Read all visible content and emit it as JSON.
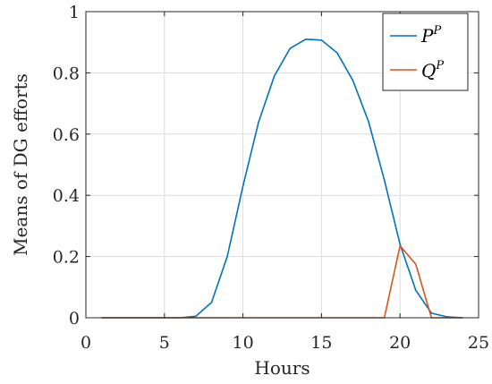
{
  "chart_data": {
    "type": "line",
    "title": "",
    "xlabel": "Hours",
    "ylabel": "Means of DG efforts",
    "xlim": [
      0,
      25
    ],
    "ylim": [
      0,
      1
    ],
    "xticks": [
      0,
      5,
      10,
      15,
      20,
      25
    ],
    "xtick_labels": [
      "0",
      "5",
      "10",
      "15",
      "20",
      "25"
    ],
    "yticks": [
      0,
      0.2,
      0.4,
      0.6,
      0.8,
      1
    ],
    "ytick_labels": [
      "0",
      "0.2",
      "0.4",
      "0.6",
      "0.8",
      "1"
    ],
    "grid": true,
    "legend_position": "top-right",
    "series": [
      {
        "name": "P",
        "name_superscript": "P",
        "color": "#0072bd",
        "x": [
          1,
          2,
          3,
          4,
          5,
          6,
          7,
          8,
          9,
          10,
          11,
          12,
          13,
          14,
          15,
          16,
          17,
          18,
          19,
          20,
          21,
          22,
          23,
          24
        ],
        "y": [
          0,
          0,
          0,
          0,
          0,
          0,
          0.005,
          0.05,
          0.2,
          0.43,
          0.64,
          0.79,
          0.88,
          0.91,
          0.907,
          0.865,
          0.775,
          0.64,
          0.45,
          0.24,
          0.09,
          0.015,
          0.003,
          0
        ]
      },
      {
        "name": "Q",
        "name_superscript": "P",
        "color": "#d95319",
        "x": [
          1,
          2,
          3,
          4,
          5,
          6,
          7,
          8,
          9,
          10,
          11,
          12,
          13,
          14,
          15,
          16,
          17,
          18,
          19,
          20,
          21,
          22,
          23,
          24
        ],
        "y": [
          0,
          0,
          0,
          0,
          0,
          0,
          0,
          0,
          0,
          0,
          0,
          0,
          0,
          0,
          0,
          0,
          0,
          0,
          0,
          0.235,
          0.175,
          0,
          0,
          0
        ]
      }
    ]
  }
}
